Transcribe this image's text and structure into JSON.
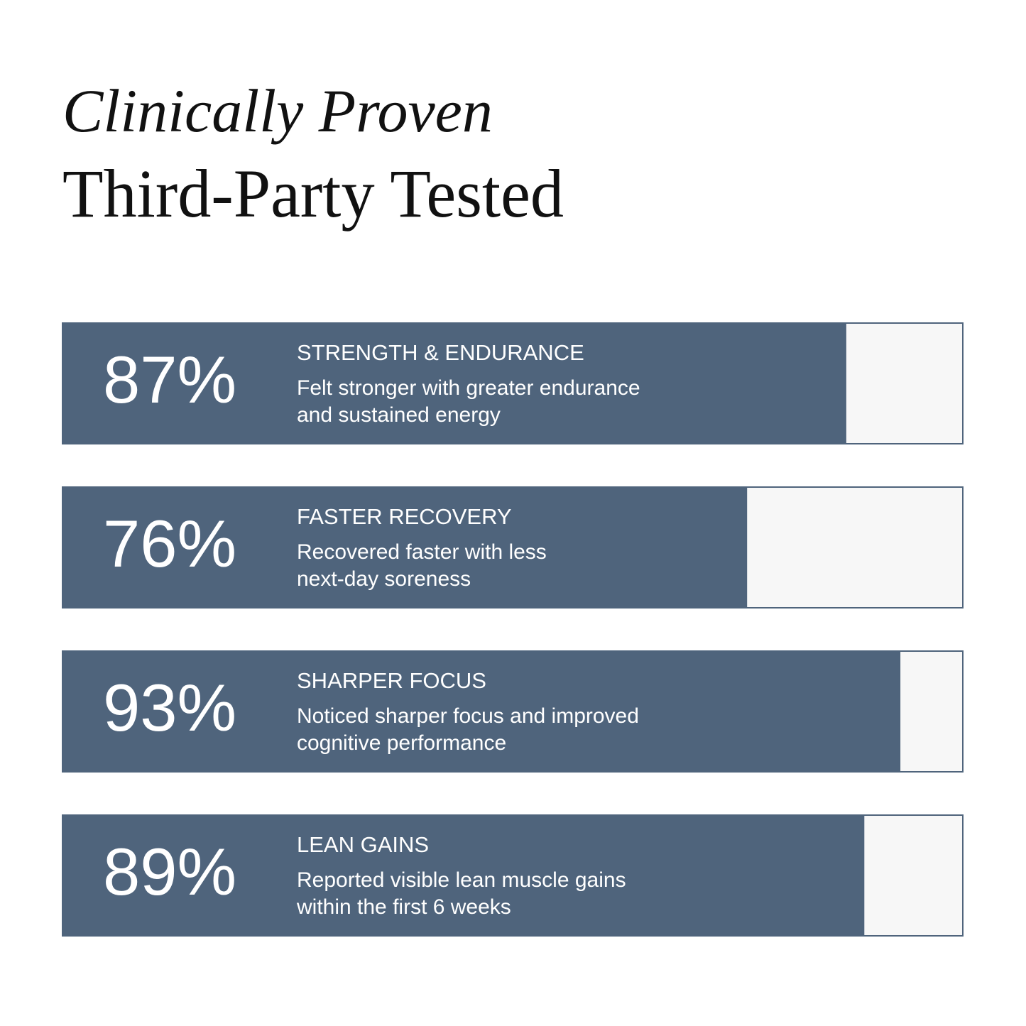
{
  "chart_data": {
    "type": "bar",
    "orientation": "horizontal",
    "title": "Clinically Proven",
    "subtitle": "Third-Party Tested",
    "categories": [
      "STRENGTH & ENDURANCE",
      "FASTER RECOVERY",
      "SHARPER FOCUS",
      "LEAN GAINS"
    ],
    "descriptions": [
      [
        "Felt stronger with greater endurance",
        "and sustained energy"
      ],
      [
        "Recovered faster with less",
        "next-day soreness"
      ],
      [
        "Noticed sharper focus and improved",
        "cognitive performance"
      ],
      [
        "Reported visible lean muscle gains",
        "within the first 6 weeks"
      ]
    ],
    "values": [
      87,
      76,
      93,
      89
    ],
    "value_labels": [
      "87%",
      "76%",
      "93%",
      "89%"
    ],
    "xlim": [
      0,
      100
    ],
    "color": "#4f647c"
  }
}
